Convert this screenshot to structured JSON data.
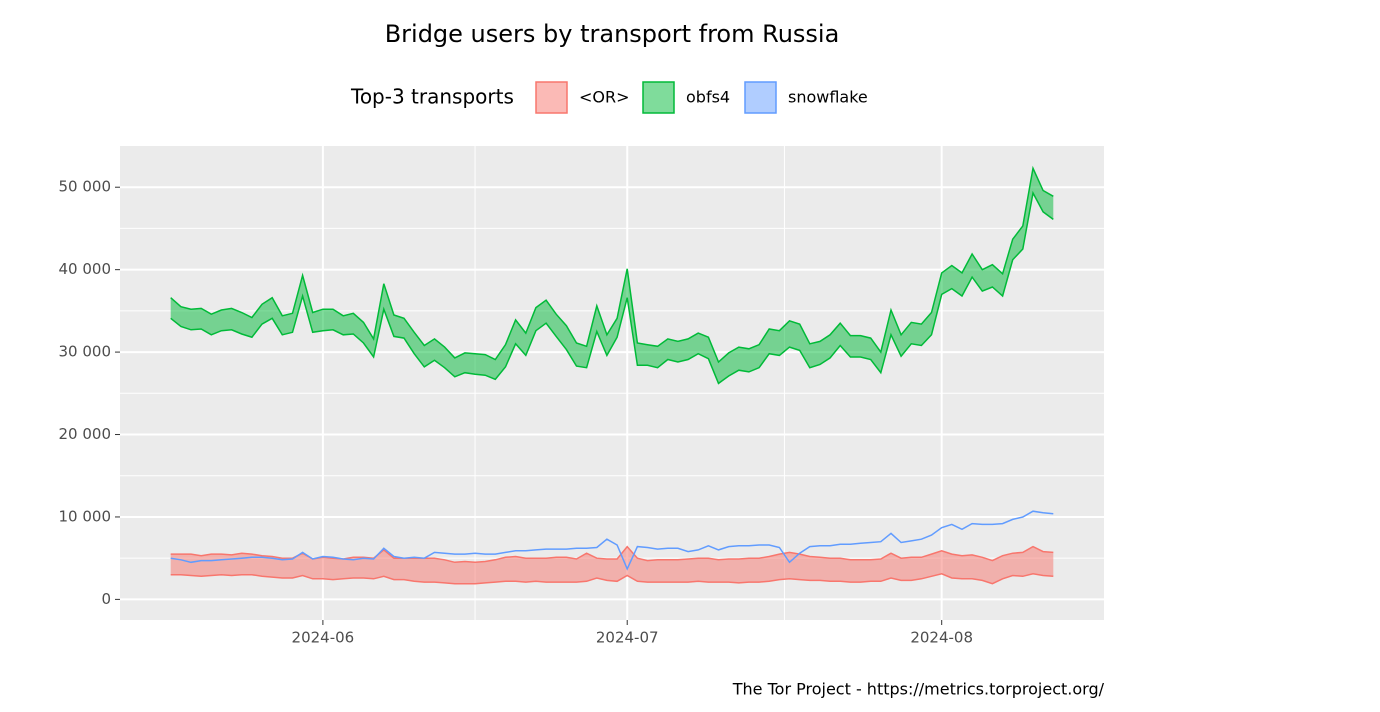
{
  "chart_data": {
    "type": "ribbon",
    "title": "Bridge users by transport from Russia",
    "legend_title": "Top-3 transports",
    "caption": "The Tor Project - https://metrics.torproject.org/",
    "x": [
      "2024-05-17",
      "2024-05-18",
      "2024-05-19",
      "2024-05-20",
      "2024-05-21",
      "2024-05-22",
      "2024-05-23",
      "2024-05-24",
      "2024-05-25",
      "2024-05-26",
      "2024-05-27",
      "2024-05-28",
      "2024-05-29",
      "2024-05-30",
      "2024-05-31",
      "2024-06-01",
      "2024-06-02",
      "2024-06-03",
      "2024-06-04",
      "2024-06-05",
      "2024-06-06",
      "2024-06-07",
      "2024-06-08",
      "2024-06-09",
      "2024-06-10",
      "2024-06-11",
      "2024-06-12",
      "2024-06-13",
      "2024-06-14",
      "2024-06-15",
      "2024-06-16",
      "2024-06-17",
      "2024-06-18",
      "2024-06-19",
      "2024-06-20",
      "2024-06-21",
      "2024-06-22",
      "2024-06-23",
      "2024-06-24",
      "2024-06-25",
      "2024-06-26",
      "2024-06-27",
      "2024-06-28",
      "2024-06-29",
      "2024-06-30",
      "2024-07-01",
      "2024-07-02",
      "2024-07-03",
      "2024-07-04",
      "2024-07-05",
      "2024-07-06",
      "2024-07-07",
      "2024-07-08",
      "2024-07-09",
      "2024-07-10",
      "2024-07-11",
      "2024-07-12",
      "2024-07-13",
      "2024-07-14",
      "2024-07-15",
      "2024-07-16",
      "2024-07-17",
      "2024-07-18",
      "2024-07-19",
      "2024-07-20",
      "2024-07-21",
      "2024-07-22",
      "2024-07-23",
      "2024-07-24",
      "2024-07-25",
      "2024-07-26",
      "2024-07-27",
      "2024-07-28",
      "2024-07-29",
      "2024-07-30",
      "2024-07-31",
      "2024-08-01",
      "2024-08-02",
      "2024-08-03",
      "2024-08-04",
      "2024-08-05",
      "2024-08-06",
      "2024-08-07",
      "2024-08-08",
      "2024-08-09",
      "2024-08-10",
      "2024-08-11",
      "2024-08-12"
    ],
    "series": [
      {
        "name": "<OR>",
        "color": "#f8766d",
        "upper": [
          5500,
          5500,
          5500,
          5300,
          5500,
          5500,
          5400,
          5600,
          5500,
          5300,
          5200,
          5000,
          5000,
          5600,
          4900,
          5100,
          5000,
          4900,
          5100,
          5100,
          5000,
          6000,
          5000,
          5000,
          5000,
          5000,
          5000,
          4800,
          4500,
          4600,
          4500,
          4600,
          4800,
          5100,
          5200,
          5000,
          5000,
          5000,
          5100,
          5100,
          4900,
          5600,
          5000,
          4900,
          4900,
          6400,
          5000,
          4700,
          4800,
          4800,
          4800,
          4900,
          5000,
          5000,
          4800,
          4900,
          4900,
          5000,
          5000,
          5200,
          5500,
          5700,
          5500,
          5200,
          5100,
          5000,
          5000,
          4800,
          4800,
          4800,
          4900,
          5600,
          5000,
          5100,
          5100,
          5500,
          5900,
          5500,
          5300,
          5400,
          5100,
          4700,
          5300,
          5600,
          5700,
          6400,
          5800,
          5700
        ],
        "lower": [
          3000,
          3000,
          2900,
          2800,
          2900,
          3000,
          2900,
          3000,
          3000,
          2800,
          2700,
          2600,
          2600,
          2900,
          2500,
          2500,
          2400,
          2500,
          2600,
          2600,
          2500,
          2800,
          2400,
          2400,
          2200,
          2100,
          2100,
          2000,
          1900,
          1900,
          1900,
          2000,
          2100,
          2200,
          2200,
          2100,
          2200,
          2100,
          2100,
          2100,
          2100,
          2200,
          2600,
          2300,
          2200,
          2900,
          2200,
          2100,
          2100,
          2100,
          2100,
          2100,
          2200,
          2100,
          2100,
          2100,
          2000,
          2100,
          2100,
          2200,
          2400,
          2500,
          2400,
          2300,
          2300,
          2200,
          2200,
          2100,
          2100,
          2200,
          2200,
          2600,
          2300,
          2300,
          2500,
          2800,
          3100,
          2600,
          2500,
          2500,
          2300,
          1900,
          2500,
          2900,
          2800,
          3100,
          2900,
          2800
        ]
      },
      {
        "name": "obfs4",
        "color": "#00ba38",
        "upper": [
          36600,
          35500,
          35200,
          35300,
          34600,
          35100,
          35300,
          34800,
          34200,
          35800,
          36600,
          34400,
          34700,
          39300,
          34800,
          35200,
          35200,
          34400,
          34700,
          33600,
          31600,
          38300,
          34500,
          34100,
          32400,
          30800,
          31600,
          30600,
          29300,
          29900,
          29800,
          29700,
          29100,
          30900,
          33900,
          32300,
          35400,
          36300,
          34600,
          33200,
          31100,
          30700,
          35600,
          32100,
          34100,
          40100,
          31100,
          30900,
          30700,
          31600,
          31300,
          31600,
          32300,
          31800,
          28800,
          29900,
          30600,
          30400,
          30900,
          32800,
          32600,
          33800,
          33400,
          31000,
          31300,
          32100,
          33500,
          32000,
          32000,
          31700,
          30000,
          35100,
          32100,
          33600,
          33400,
          34800,
          39600,
          40500,
          39600,
          41900,
          40000,
          40600,
          39500,
          43700,
          45300,
          52300,
          49600,
          48900
        ],
        "lower": [
          34100,
          33100,
          32700,
          32800,
          32100,
          32600,
          32700,
          32200,
          31800,
          33400,
          34100,
          32100,
          32400,
          36800,
          32400,
          32600,
          32700,
          32100,
          32200,
          31100,
          29400,
          35200,
          31900,
          31700,
          29800,
          28200,
          29000,
          28100,
          27000,
          27500,
          27300,
          27200,
          26700,
          28200,
          31000,
          29600,
          32600,
          33500,
          31900,
          30300,
          28300,
          28100,
          32500,
          29600,
          31800,
          36600,
          28400,
          28400,
          28100,
          29100,
          28800,
          29100,
          29800,
          29200,
          26200,
          27100,
          27800,
          27600,
          28100,
          29800,
          29600,
          30600,
          30200,
          28100,
          28500,
          29300,
          30800,
          29400,
          29400,
          29100,
          27500,
          32100,
          29500,
          31000,
          30800,
          32100,
          37000,
          37700,
          36800,
          39100,
          37400,
          37900,
          36800,
          41200,
          42500,
          49300,
          47000,
          46100
        ]
      },
      {
        "name": "snowflake",
        "color": "#619cff",
        "values": [
          5000,
          4800,
          4500,
          4700,
          4700,
          4800,
          4900,
          5000,
          5100,
          5100,
          5000,
          4800,
          4900,
          5700,
          4900,
          5200,
          5100,
          4900,
          4800,
          5000,
          4900,
          6200,
          5200,
          5000,
          5100,
          5000,
          5700,
          5600,
          5500,
          5500,
          5600,
          5500,
          5500,
          5700,
          5900,
          5900,
          6000,
          6100,
          6100,
          6100,
          6200,
          6200,
          6300,
          7300,
          6600,
          3700,
          6400,
          6300,
          6100,
          6200,
          6200,
          5800,
          6000,
          6500,
          6000,
          6400,
          6500,
          6500,
          6600,
          6600,
          6300,
          4500,
          5600,
          6400,
          6500,
          6500,
          6700,
          6700,
          6800,
          6900,
          7000,
          8000,
          6900,
          7100,
          7300,
          7800,
          8700,
          9100,
          8500,
          9200,
          9100,
          9100,
          9200,
          9700,
          10000,
          10700,
          10500,
          10400
        ]
      }
    ],
    "xlim": [
      "2024-05-12",
      "2024-08-17"
    ],
    "xticks": [
      {
        "value": "2024-06-01",
        "label": "2024-06"
      },
      {
        "value": "2024-07-01",
        "label": "2024-07"
      },
      {
        "value": "2024-08-01",
        "label": "2024-08"
      }
    ],
    "ylim": [
      -2500,
      55000
    ],
    "yticks": [
      0,
      {
        "value": 10000,
        "label": "10 000"
      },
      {
        "value": 20000,
        "label": "20 000"
      },
      {
        "value": 30000,
        "label": "30 000"
      },
      {
        "value": 40000,
        "label": "40 000"
      },
      {
        "value": 50000,
        "label": "50 000"
      }
    ],
    "grid": true
  }
}
